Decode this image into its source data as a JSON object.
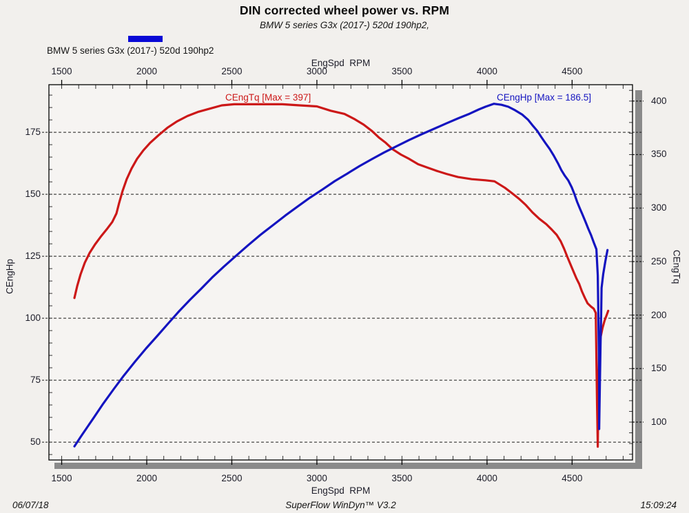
{
  "header": {
    "title": "DIN corrected wheel power vs. RPM",
    "subtitle": "BMW 5 series G3x (2017-) 520d 190hp2,"
  },
  "legend": {
    "label": "BMW 5 series G3x (2017-) 520d 190hp2",
    "swatch_color": "#0909d6"
  },
  "footer": {
    "date": "06/07/18",
    "app": "SuperFlow WinDyn™ V3.2",
    "time": "15:09:24"
  },
  "colors": {
    "page_bg": "#f2f0ed",
    "plot_bg": "#f6f4f2",
    "border": "#000000",
    "shadow": "#8a8a8a",
    "grid": "#1a1a1a",
    "torque": "#cc1818",
    "power": "#1414c0"
  },
  "chart_data": {
    "type": "line",
    "title": "DIN corrected wheel power vs. RPM",
    "x_axis": {
      "label": "EngSpd  RPM",
      "min": 1425,
      "max": 4855,
      "major_ticks": [
        1500,
        2000,
        2500,
        3000,
        3500,
        4000,
        4500
      ],
      "minor_step": 100,
      "shown_top_and_bottom": true
    },
    "y_left": {
      "label": "CEngHp",
      "min": 42.8,
      "max": 194.2,
      "major_ticks": [
        50,
        75,
        100,
        125,
        150,
        175
      ],
      "minor_step": 5,
      "grid": "dashed"
    },
    "y_right": {
      "label": "CEngTq",
      "min": 64.6,
      "max": 415.3,
      "major_ticks": [
        100,
        150,
        200,
        250,
        300,
        350,
        400
      ],
      "minor_step": 10
    },
    "series": [
      {
        "name": "CEngTq",
        "annotation": "CEngTq [Max = 397]",
        "max": 397,
        "axis": "right",
        "color": "#cc1818",
        "points": [
          [
            1575,
            216
          ],
          [
            1591,
            227
          ],
          [
            1611,
            238
          ],
          [
            1636,
            249
          ],
          [
            1664,
            258
          ],
          [
            1696,
            266
          ],
          [
            1733,
            274
          ],
          [
            1769,
            281
          ],
          [
            1797,
            287
          ],
          [
            1822,
            295
          ],
          [
            1838,
            305
          ],
          [
            1858,
            316
          ],
          [
            1882,
            327
          ],
          [
            1911,
            337
          ],
          [
            1943,
            346
          ],
          [
            1980,
            354
          ],
          [
            2020,
            361
          ],
          [
            2069,
            368
          ],
          [
            2121,
            375
          ],
          [
            2178,
            381
          ],
          [
            2239,
            386
          ],
          [
            2304,
            390
          ],
          [
            2372,
            393
          ],
          [
            2441,
            396
          ],
          [
            2514,
            397
          ],
          [
            2595,
            397
          ],
          [
            2696,
            397
          ],
          [
            2797,
            397
          ],
          [
            2899,
            396
          ],
          [
            3000,
            395
          ],
          [
            3081,
            391
          ],
          [
            3162,
            388
          ],
          [
            3223,
            383
          ],
          [
            3275,
            378
          ],
          [
            3324,
            372
          ],
          [
            3364,
            366
          ],
          [
            3405,
            361
          ],
          [
            3445,
            355
          ],
          [
            3494,
            350
          ],
          [
            3542,
            346
          ],
          [
            3595,
            341
          ],
          [
            3647,
            338
          ],
          [
            3700,
            335
          ],
          [
            3761,
            332
          ],
          [
            3829,
            329
          ],
          [
            3910,
            327
          ],
          [
            3991,
            326
          ],
          [
            4044,
            325
          ],
          [
            4105,
            319
          ],
          [
            4146,
            314
          ],
          [
            4186,
            309
          ],
          [
            4227,
            303
          ],
          [
            4267,
            296
          ],
          [
            4307,
            290
          ],
          [
            4348,
            285
          ],
          [
            4380,
            280
          ],
          [
            4409,
            275
          ],
          [
            4433,
            269
          ],
          [
            4453,
            262
          ],
          [
            4473,
            254
          ],
          [
            4494,
            246
          ],
          [
            4510,
            240
          ],
          [
            4526,
            234
          ],
          [
            4542,
            229
          ],
          [
            4558,
            222
          ],
          [
            4575,
            216
          ],
          [
            4591,
            211
          ],
          [
            4611,
            208
          ],
          [
            4627,
            206
          ],
          [
            4639,
            202
          ],
          [
            4643,
            160
          ],
          [
            4647,
            115
          ],
          [
            4651,
            77
          ],
          [
            4655,
            134
          ],
          [
            4659,
            166
          ],
          [
            4667,
            179
          ],
          [
            4679,
            188
          ],
          [
            4691,
            195
          ],
          [
            4703,
            200
          ],
          [
            4712,
            204
          ]
        ]
      },
      {
        "name": "CEngHp",
        "annotation": "CEngHp [Max = 186.5]",
        "max": 186.5,
        "axis": "left",
        "color": "#1414c0",
        "points": [
          [
            1575,
            48.3
          ],
          [
            1623,
            53.3
          ],
          [
            1684,
            59.4
          ],
          [
            1745,
            65.6
          ],
          [
            1806,
            71.4
          ],
          [
            1866,
            76.9
          ],
          [
            1931,
            82.5
          ],
          [
            1996,
            87.8
          ],
          [
            2061,
            92.8
          ],
          [
            2125,
            97.8
          ],
          [
            2190,
            102.8
          ],
          [
            2255,
            107.5
          ],
          [
            2320,
            111.9
          ],
          [
            2384,
            116.4
          ],
          [
            2453,
            120.8
          ],
          [
            2522,
            125.0
          ],
          [
            2595,
            129.4
          ],
          [
            2668,
            133.6
          ],
          [
            2741,
            137.5
          ],
          [
            2814,
            141.4
          ],
          [
            2886,
            145.0
          ],
          [
            2959,
            148.6
          ],
          [
            3032,
            151.9
          ],
          [
            3105,
            155.3
          ],
          [
            3178,
            158.3
          ],
          [
            3251,
            161.4
          ],
          [
            3324,
            164.2
          ],
          [
            3396,
            166.9
          ],
          [
            3469,
            169.4
          ],
          [
            3542,
            171.9
          ],
          [
            3615,
            174.2
          ],
          [
            3688,
            176.4
          ],
          [
            3761,
            178.6
          ],
          [
            3829,
            180.6
          ],
          [
            3898,
            182.5
          ],
          [
            3951,
            184.2
          ],
          [
            3991,
            185.3
          ],
          [
            4040,
            186.5
          ],
          [
            4085,
            186.1
          ],
          [
            4125,
            185.3
          ],
          [
            4165,
            183.9
          ],
          [
            4206,
            182.2
          ],
          [
            4242,
            180.0
          ],
          [
            4271,
            177.5
          ],
          [
            4295,
            175.6
          ],
          [
            4319,
            173.1
          ],
          [
            4344,
            170.6
          ],
          [
            4368,
            168.3
          ],
          [
            4392,
            165.6
          ],
          [
            4417,
            162.5
          ],
          [
            4437,
            159.7
          ],
          [
            4457,
            157.5
          ],
          [
            4477,
            155.6
          ],
          [
            4498,
            152.8
          ],
          [
            4514,
            150.0
          ],
          [
            4530,
            146.9
          ],
          [
            4546,
            144.2
          ],
          [
            4562,
            141.7
          ],
          [
            4579,
            138.9
          ],
          [
            4595,
            136.1
          ],
          [
            4611,
            133.6
          ],
          [
            4627,
            130.6
          ],
          [
            4643,
            127.8
          ],
          [
            4651,
            117.2
          ],
          [
            4655,
            97.8
          ],
          [
            4659,
            78.3
          ],
          [
            4659,
            55.3
          ],
          [
            4663,
            72.8
          ],
          [
            4667,
            89.4
          ],
          [
            4671,
            103.3
          ],
          [
            4673,
            112.2
          ],
          [
            4683,
            117.8
          ],
          [
            4695,
            122.8
          ],
          [
            4708,
            127.5
          ]
        ]
      }
    ]
  }
}
